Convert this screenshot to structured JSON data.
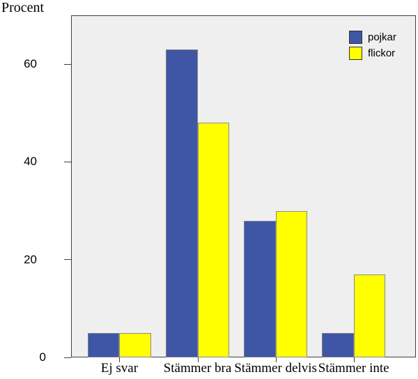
{
  "chart_data": {
    "type": "bar",
    "ylabel": "Procent",
    "categories": [
      "Ej svar",
      "Stämmer bra",
      "Stämmer delvis",
      "Stämmer inte"
    ],
    "series": [
      {
        "name": "pojkar",
        "color": "#3E56A5",
        "border_color": "#7d7d8a",
        "values": [
          5,
          63,
          28,
          5
        ]
      },
      {
        "name": "flickor",
        "color": "#FFFF00",
        "border_color": "#8c8c8c",
        "values": [
          5,
          48,
          30,
          17
        ]
      }
    ],
    "yticks": [
      0,
      20,
      40,
      60
    ],
    "ylim": [
      0,
      70
    ],
    "grid": false,
    "legend_position": "top-right",
    "plot_background": "#EFEFEF",
    "axis_color": "#3f3f3f"
  }
}
